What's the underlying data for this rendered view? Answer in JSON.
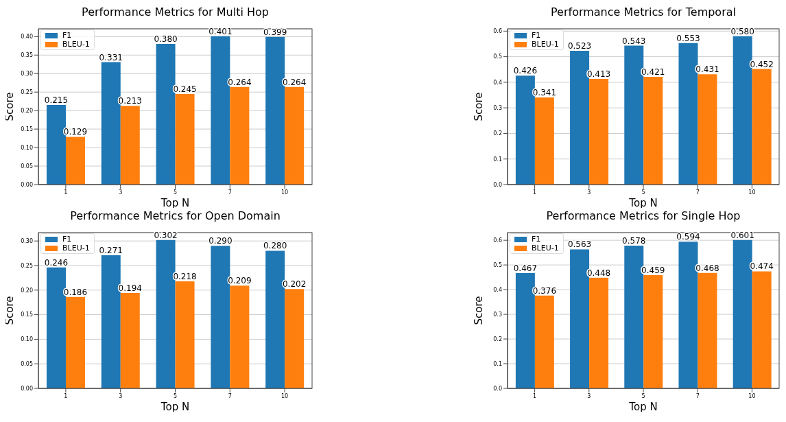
{
  "chart_data": [
    {
      "type": "bar",
      "title": "Performance Metrics for Multi Hop",
      "xlabel": "Top N",
      "ylabel": "Score",
      "categories": [
        "1",
        "3",
        "5",
        "7",
        "10"
      ],
      "series": [
        {
          "name": "F1",
          "color": "#1f77b4",
          "values": [
            0.215,
            0.331,
            0.38,
            0.401,
            0.399
          ],
          "value_labels": [
            "0.215",
            "0.331",
            "0.380",
            "0.401",
            "0.399"
          ]
        },
        {
          "name": "BLEU-1",
          "color": "#ff7f0e",
          "values": [
            0.129,
            0.213,
            0.245,
            0.264,
            0.264
          ],
          "value_labels": [
            "0.129",
            "0.213",
            "0.245",
            "0.264",
            "0.264"
          ]
        }
      ],
      "ylim": [
        0,
        0.421
      ],
      "yticks": [
        {
          "value": 0,
          "label": "0.00"
        },
        {
          "value": 0.05,
          "label": "0.05"
        },
        {
          "value": 0.1,
          "label": "0.10"
        },
        {
          "value": 0.15,
          "label": "0.15"
        },
        {
          "value": 0.2,
          "label": "0.20"
        },
        {
          "value": 0.25,
          "label": "0.25"
        },
        {
          "value": 0.3,
          "label": "0.30"
        },
        {
          "value": 0.35,
          "label": "0.35"
        },
        {
          "value": 0.4,
          "label": "0.40"
        }
      ],
      "grid": "y",
      "legend": "top left"
    },
    {
      "type": "bar",
      "title": "Performance Metrics for Temporal",
      "xlabel": "Top N",
      "ylabel": "Score",
      "categories": [
        "1",
        "3",
        "5",
        "7",
        "10"
      ],
      "series": [
        {
          "name": "F1",
          "color": "#1f77b4",
          "values": [
            0.426,
            0.523,
            0.543,
            0.553,
            0.58
          ],
          "value_labels": [
            "0.426",
            "0.523",
            "0.543",
            "0.553",
            "0.580"
          ]
        },
        {
          "name": "BLEU-1",
          "color": "#ff7f0e",
          "values": [
            0.341,
            0.413,
            0.421,
            0.431,
            0.452
          ],
          "value_labels": [
            "0.341",
            "0.413",
            "0.421",
            "0.431",
            "0.452"
          ]
        }
      ],
      "ylim": [
        0,
        0.609
      ],
      "yticks": [
        {
          "value": 0,
          "label": "0.0"
        },
        {
          "value": 0.1,
          "label": "0.1"
        },
        {
          "value": 0.2,
          "label": "0.2"
        },
        {
          "value": 0.3,
          "label": "0.3"
        },
        {
          "value": 0.4,
          "label": "0.4"
        },
        {
          "value": 0.5,
          "label": "0.5"
        },
        {
          "value": 0.6,
          "label": "0.6"
        }
      ],
      "grid": "y",
      "legend": "top left"
    },
    {
      "type": "bar",
      "title": "Performance Metrics for Open Domain",
      "xlabel": "Top N",
      "ylabel": "Score",
      "categories": [
        "1",
        "3",
        "5",
        "7",
        "10"
      ],
      "series": [
        {
          "name": "F1",
          "color": "#1f77b4",
          "values": [
            0.246,
            0.271,
            0.302,
            0.29,
            0.28
          ],
          "value_labels": [
            "0.246",
            "0.271",
            "0.302",
            "0.290",
            "0.280"
          ]
        },
        {
          "name": "BLEU-1",
          "color": "#ff7f0e",
          "values": [
            0.186,
            0.194,
            0.218,
            0.209,
            0.202
          ],
          "value_labels": [
            "0.186",
            "0.194",
            "0.218",
            "0.209",
            "0.202"
          ]
        }
      ],
      "ylim": [
        0,
        0.317
      ],
      "yticks": [
        {
          "value": 0,
          "label": "0.00"
        },
        {
          "value": 0.05,
          "label": "0.05"
        },
        {
          "value": 0.1,
          "label": "0.10"
        },
        {
          "value": 0.15,
          "label": "0.15"
        },
        {
          "value": 0.2,
          "label": "0.20"
        },
        {
          "value": 0.25,
          "label": "0.25"
        },
        {
          "value": 0.3,
          "label": "0.30"
        }
      ],
      "grid": "y",
      "legend": "top left"
    },
    {
      "type": "bar",
      "title": "Performance Metrics for Single Hop",
      "xlabel": "Top N",
      "ylabel": "Score",
      "categories": [
        "1",
        "3",
        "5",
        "7",
        "10"
      ],
      "series": [
        {
          "name": "F1",
          "color": "#1f77b4",
          "values": [
            0.467,
            0.563,
            0.578,
            0.594,
            0.601
          ],
          "value_labels": [
            "0.467",
            "0.563",
            "0.578",
            "0.594",
            "0.601"
          ]
        },
        {
          "name": "BLEU-1",
          "color": "#ff7f0e",
          "values": [
            0.376,
            0.448,
            0.459,
            0.468,
            0.474
          ],
          "value_labels": [
            "0.376",
            "0.448",
            "0.459",
            "0.468",
            "0.474"
          ]
        }
      ],
      "ylim": [
        0,
        0.631
      ],
      "yticks": [
        {
          "value": 0,
          "label": "0.0"
        },
        {
          "value": 0.1,
          "label": "0.1"
        },
        {
          "value": 0.2,
          "label": "0.2"
        },
        {
          "value": 0.3,
          "label": "0.3"
        },
        {
          "value": 0.4,
          "label": "0.4"
        },
        {
          "value": 0.5,
          "label": "0.5"
        },
        {
          "value": 0.6,
          "label": "0.6"
        }
      ],
      "grid": "y",
      "legend": "top left"
    }
  ]
}
